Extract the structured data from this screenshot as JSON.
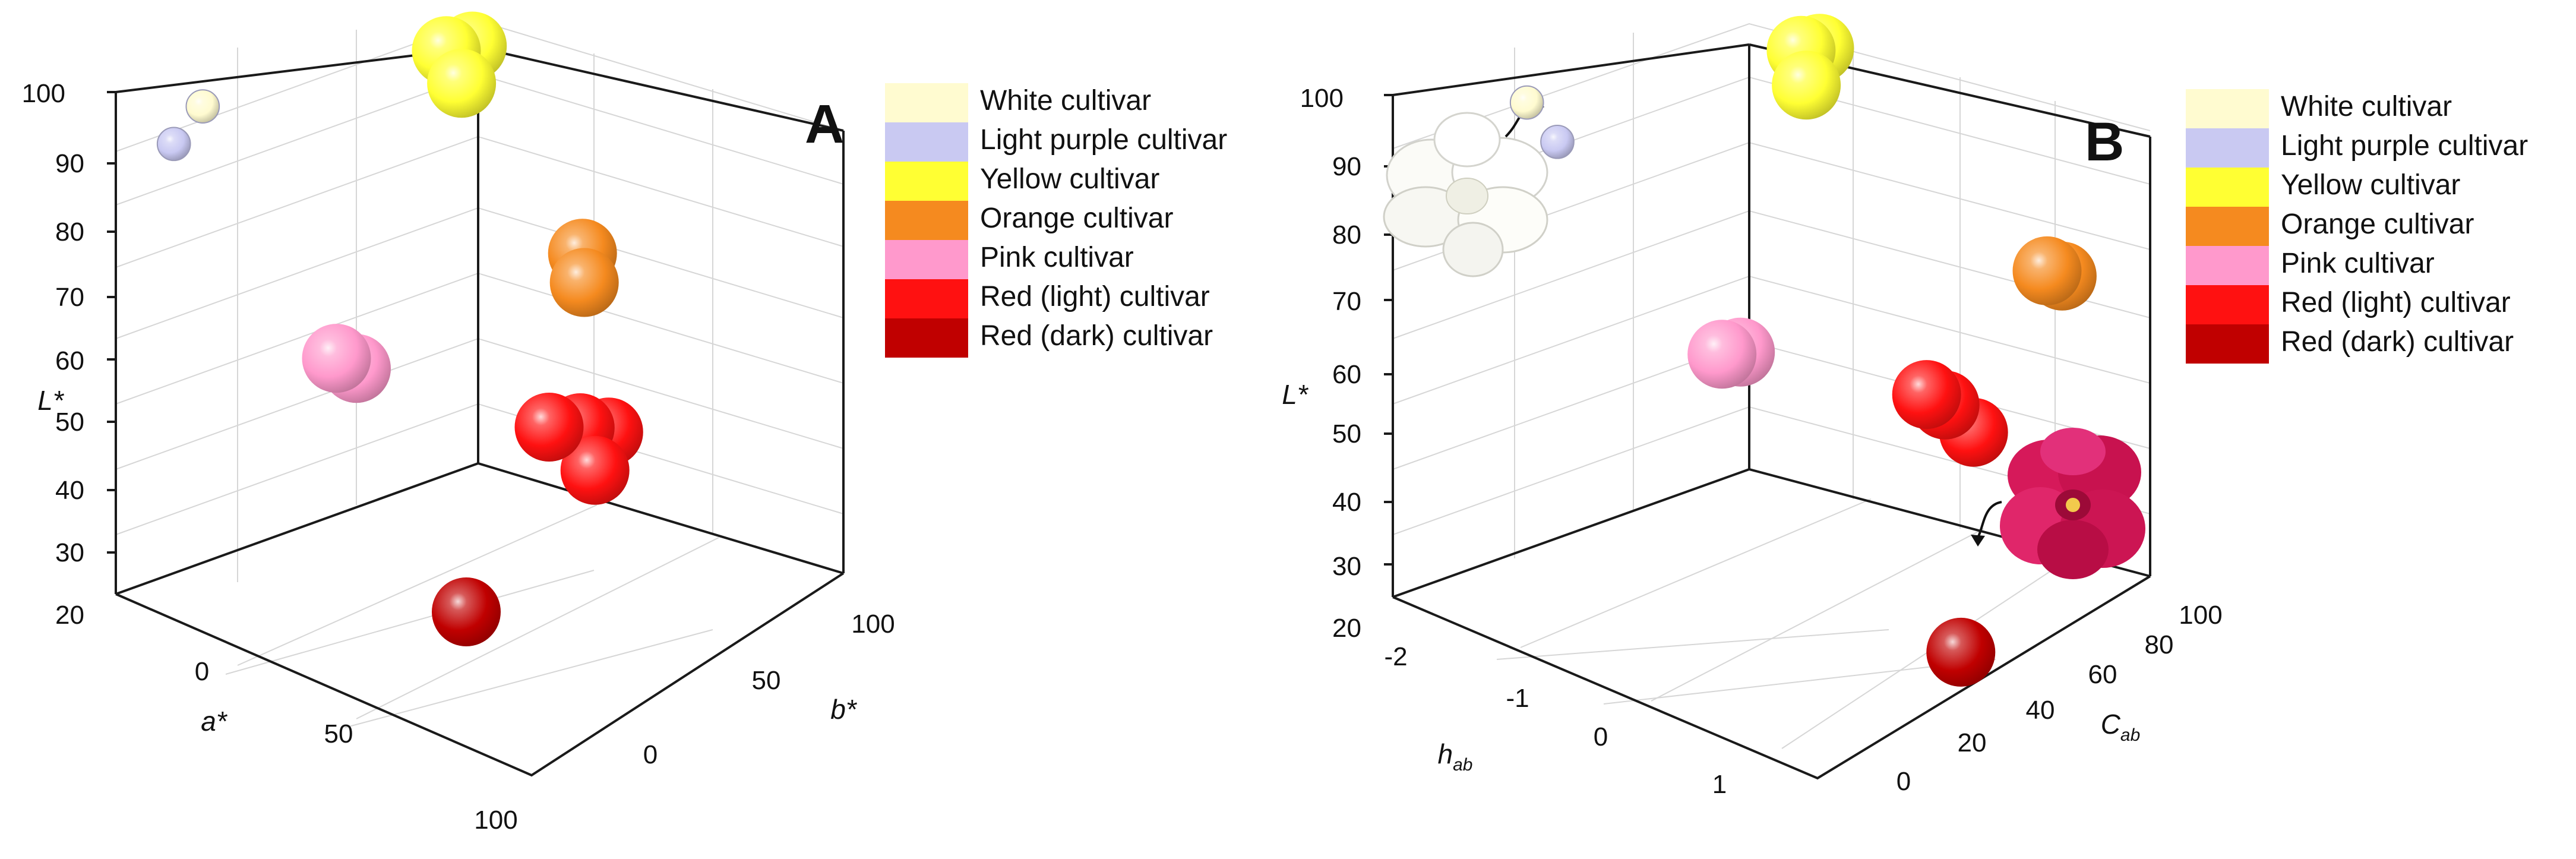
{
  "chart_data": [
    {
      "type": "scatter3d",
      "panel_label": "A",
      "axes": {
        "x": {
          "label": "a*",
          "ticks": [
            "0",
            "50",
            "100"
          ]
        },
        "y": {
          "label": "b*",
          "ticks": [
            "0",
            "50",
            "100"
          ]
        },
        "z": {
          "label": "L*",
          "ticks": [
            "20",
            "30",
            "40",
            "50",
            "60",
            "70",
            "80",
            "90",
            "100"
          ]
        }
      },
      "series": [
        {
          "name": "White cultivar",
          "color": "#FFFBD0",
          "points": [
            {
              "x": -8,
              "y": 5,
              "z": 98
            }
          ]
        },
        {
          "name": "Light purple cultivar",
          "color": "#C9C9F2",
          "points": [
            {
              "x": -5,
              "y": -8,
              "z": 95
            }
          ]
        },
        {
          "name": "Yellow cultivar",
          "color": "#FFFF33",
          "points": [
            {
              "x": -10,
              "y": 88,
              "z": 92
            },
            {
              "x": -6,
              "y": 92,
              "z": 93
            },
            {
              "x": -3,
              "y": 85,
              "z": 89
            }
          ]
        },
        {
          "name": "Orange cultivar",
          "color": "#F58A1F",
          "points": [
            {
              "x": 38,
              "y": 78,
              "z": 73
            },
            {
              "x": 42,
              "y": 74,
              "z": 70
            }
          ]
        },
        {
          "name": "Pink cultivar",
          "color": "#FF99CC",
          "points": [
            {
              "x": 28,
              "y": 8,
              "z": 66
            },
            {
              "x": 32,
              "y": 10,
              "z": 65
            }
          ]
        },
        {
          "name": "Red (light) cultivar",
          "color": "#FF1111",
          "points": [
            {
              "x": 58,
              "y": 44,
              "z": 56
            },
            {
              "x": 60,
              "y": 52,
              "z": 55
            },
            {
              "x": 63,
              "y": 58,
              "z": 54
            },
            {
              "x": 66,
              "y": 50,
              "z": 50
            }
          ]
        },
        {
          "name": "Red (dark) cultivar",
          "color": "#C00000",
          "points": [
            {
              "x": 55,
              "y": 20,
              "z": 30
            }
          ]
        }
      ]
    },
    {
      "type": "scatter3d",
      "panel_label": "B",
      "axes": {
        "x": {
          "label": "h",
          "subscript": "ab",
          "ticks": [
            "-2",
            "-1",
            "0",
            "1"
          ]
        },
        "y": {
          "label": "C",
          "subscript": "ab",
          "ticks": [
            "0",
            "20",
            "40",
            "60",
            "80",
            "100"
          ]
        },
        "z": {
          "label": "L*",
          "ticks": [
            "20",
            "30",
            "40",
            "50",
            "60",
            "70",
            "80",
            "90",
            "100"
          ]
        }
      },
      "series": [
        {
          "name": "White cultivar",
          "color": "#FFFBD0",
          "points": [
            {
              "x": -1.9,
              "y": 15,
              "z": 98
            }
          ]
        },
        {
          "name": "Light purple cultivar",
          "color": "#C9C9F2",
          "points": [
            {
              "x": -1.5,
              "y": 12,
              "z": 95
            }
          ]
        },
        {
          "name": "Yellow cultivar",
          "color": "#FFFF33",
          "points": [
            {
              "x": -1.6,
              "y": 88,
              "z": 96
            },
            {
              "x": -1.55,
              "y": 92,
              "z": 96
            },
            {
              "x": -1.45,
              "y": 85,
              "z": 92
            }
          ]
        },
        {
          "name": "Orange cultivar",
          "color": "#F58A1F",
          "points": [
            {
              "x": 0.7,
              "y": 92,
              "z": 76
            },
            {
              "x": 0.75,
              "y": 95,
              "z": 75
            }
          ]
        },
        {
          "name": "Pink cultivar",
          "color": "#FF99CC",
          "points": [
            {
              "x": -0.4,
              "y": 28,
              "z": 66
            },
            {
              "x": -0.35,
              "y": 32,
              "z": 66
            }
          ]
        },
        {
          "name": "Red (light) cultivar",
          "color": "#FF1111",
          "points": [
            {
              "x": 0.5,
              "y": 62,
              "z": 60
            },
            {
              "x": 0.55,
              "y": 66,
              "z": 58
            },
            {
              "x": 0.7,
              "y": 70,
              "z": 54
            }
          ]
        },
        {
          "name": "Red (dark) cultivar",
          "color": "#C00000",
          "points": [
            {
              "x": 1.4,
              "y": 45,
              "z": 28
            }
          ]
        }
      ]
    }
  ]
}
